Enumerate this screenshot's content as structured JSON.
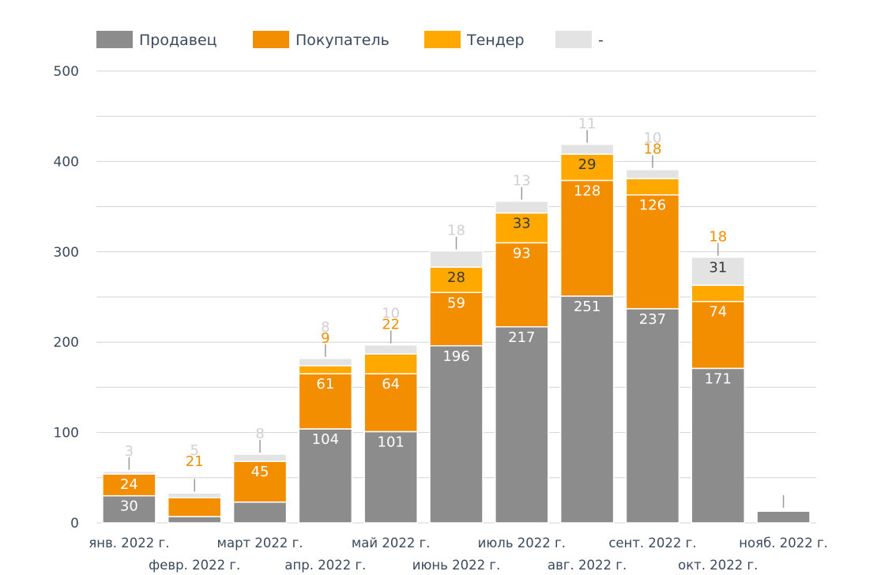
{
  "chart_data": {
    "type": "bar",
    "stacked": true,
    "categories": [
      "янв. 2022 г.",
      "февр. 2022 г.",
      "март 2022 г.",
      "апр. 2022 г.",
      "май 2022 г.",
      "июнь 2022 г.",
      "июль 2022 г.",
      "авг. 2022 г.",
      "сент. 2022 г.",
      "окт. 2022 г.",
      "нояб. 2022 г."
    ],
    "series": [
      {
        "name": "Продавец",
        "color": "#8c8c8c",
        "values": [
          30,
          7,
          23,
          104,
          101,
          196,
          217,
          251,
          237,
          171,
          13
        ]
      },
      {
        "name": "Покупатель",
        "color": "#f28e00",
        "values": [
          24,
          21,
          45,
          61,
          64,
          59,
          93,
          128,
          126,
          74,
          1
        ]
      },
      {
        "name": "Тендер",
        "color": "#ffa800",
        "values": [
          0,
          0,
          0,
          9,
          22,
          28,
          33,
          29,
          18,
          18,
          0
        ]
      },
      {
        "name": "-",
        "color": "#e3e3e3",
        "values": [
          3,
          5,
          8,
          8,
          10,
          18,
          13,
          11,
          10,
          31,
          1
        ]
      }
    ],
    "ylim": [
      0,
      500
    ],
    "yticks": [
      "0",
      "100",
      "200",
      "300",
      "400",
      "500"
    ],
    "legend_position": "top-left",
    "grid": true,
    "data_label_texts": [
      [
        "30",
        "7",
        "",
        "104",
        "101",
        "196",
        "217",
        "251",
        "237",
        "171",
        "13"
      ],
      [
        "24",
        "21",
        "45",
        "61",
        "64",
        "59",
        "93",
        "128",
        "126",
        "74",
        ""
      ],
      [
        "",
        "",
        "",
        "9",
        "22",
        "28",
        "33",
        "29",
        "18",
        "18",
        ""
      ],
      [
        "3",
        "5",
        "8",
        "8",
        "10",
        "18",
        "13",
        "11",
        "10",
        "31",
        ""
      ]
    ]
  }
}
